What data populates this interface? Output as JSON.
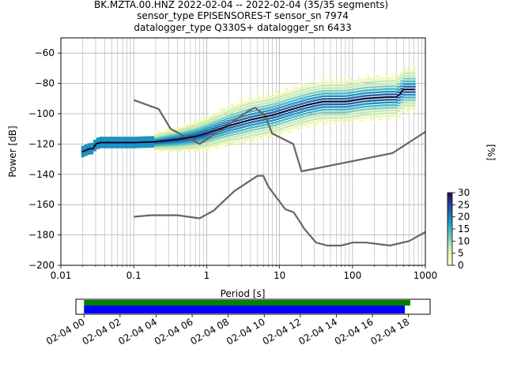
{
  "chart_data": [
    {
      "type": "line",
      "title_lines": [
        "BK.MZTA.00.HNZ   2022-02-04 -- 2022-02-04  (35/35 segments)",
        "sensor_type EPISENSORES-T sensor_sn 7974",
        "datalogger_type Q330S+ datalogger_sn 6433"
      ],
      "xlabel": "Period [s]",
      "ylabel": "Power [dB]",
      "xscale": "log",
      "xlim": [
        0.01,
        1000
      ],
      "ylim": [
        -200,
        -50
      ],
      "x_ticks": [
        {
          "value": 0.01,
          "label": "0.01"
        },
        {
          "value": 0.1,
          "label": "0.1"
        },
        {
          "value": 1,
          "label": "1"
        },
        {
          "value": 10,
          "label": "10"
        },
        {
          "value": 100,
          "label": "100"
        },
        {
          "value": 1000,
          "label": "1000"
        }
      ],
      "y_ticks": [
        {
          "value": -60,
          "label": "−60"
        },
        {
          "value": -80,
          "label": "−80"
        },
        {
          "value": -100,
          "label": "−100"
        },
        {
          "value": -120,
          "label": "−120"
        },
        {
          "value": -140,
          "label": "−140"
        },
        {
          "value": -160,
          "label": "−160"
        },
        {
          "value": -180,
          "label": "−180"
        },
        {
          "value": -200,
          "label": "−200"
        }
      ],
      "grid": true,
      "series": [
        {
          "role": "high noise model",
          "color": "#666666",
          "points": [
            [
              0.1,
              -91
            ],
            [
              0.22,
              -97
            ],
            [
              0.32,
              -110
            ],
            [
              0.8,
              -120
            ],
            [
              3.8,
              -98
            ],
            [
              4.6,
              -96
            ],
            [
              6.3,
              -101
            ],
            [
              7.9,
              -113
            ],
            [
              15.4,
              -120
            ],
            [
              20,
              -138
            ],
            [
              354,
              -126
            ],
            [
              1000,
              -112
            ]
          ]
        },
        {
          "role": "low noise model",
          "color": "#666666",
          "points": [
            [
              0.1,
              -168
            ],
            [
              0.17,
              -167
            ],
            [
              0.4,
              -167
            ],
            [
              0.8,
              -169
            ],
            [
              1.24,
              -164
            ],
            [
              2.4,
              -151
            ],
            [
              4.3,
              -143
            ],
            [
              5,
              -141
            ],
            [
              6,
              -141
            ],
            [
              7,
              -148
            ],
            [
              10,
              -158
            ],
            [
              12,
              -163
            ],
            [
              15.6,
              -165
            ],
            [
              20,
              -173
            ],
            [
              21.9,
              -176
            ],
            [
              31.6,
              -185
            ],
            [
              45,
              -187
            ],
            [
              70,
              -187
            ],
            [
              101,
              -185
            ],
            [
              154,
              -185
            ],
            [
              328,
              -187
            ],
            [
              600,
              -184
            ],
            [
              1000,
              -178
            ]
          ]
        },
        {
          "role": "mode",
          "color": "#000000",
          "points": [
            [
              0.02,
              -125
            ],
            [
              0.025,
              -123
            ],
            [
              0.028,
              -123
            ],
            [
              0.03,
              -120
            ],
            [
              0.035,
              -119
            ],
            [
              0.05,
              -119
            ],
            [
              0.1,
              -119
            ],
            [
              0.2,
              -118.5
            ],
            [
              0.4,
              -117
            ],
            [
              0.7,
              -115
            ],
            [
              1,
              -113
            ],
            [
              2,
              -108
            ],
            [
              4,
              -104
            ],
            [
              8,
              -101
            ],
            [
              15,
              -97
            ],
            [
              25,
              -94
            ],
            [
              40,
              -92
            ],
            [
              80,
              -92
            ],
            [
              150,
              -90
            ],
            [
              300,
              -89
            ],
            [
              400,
              -89
            ],
            [
              450,
              -87
            ],
            [
              500,
              -84
            ],
            [
              600,
              -84
            ],
            [
              700,
              -84
            ]
          ]
        }
      ],
      "colorbar": {
        "label": "[%]",
        "range": [
          0,
          30
        ],
        "ticks": [
          {
            "value": 0,
            "label": "0"
          },
          {
            "value": 5,
            "label": "5"
          },
          {
            "value": 10,
            "label": "10"
          },
          {
            "value": 15,
            "label": "15"
          },
          {
            "value": 20,
            "label": "20"
          },
          {
            "value": 25,
            "label": "25"
          },
          {
            "value": 30,
            "label": "30"
          }
        ],
        "colormap": [
          "#ffffd9",
          "#edf8b1",
          "#c7e9b4",
          "#7fcdbb",
          "#41b6c4",
          "#1d91c0",
          "#225ea8",
          "#253494",
          "#2c0f4a"
        ]
      }
    },
    {
      "type": "bar",
      "role": "data coverage timeline",
      "x_ticks": [
        {
          "hour": 0,
          "label": "02-04 00"
        },
        {
          "hour": 2,
          "label": "02-04 02"
        },
        {
          "hour": 4,
          "label": "02-04 04"
        },
        {
          "hour": 6,
          "label": "02-04 06"
        },
        {
          "hour": 8,
          "label": "02-04 08"
        },
        {
          "hour": 10,
          "label": "02-04 10"
        },
        {
          "hour": 12,
          "label": "02-04 12"
        },
        {
          "hour": 14,
          "label": "02-04 14"
        },
        {
          "hour": 16,
          "label": "02-04 16"
        },
        {
          "hour": 18,
          "label": "02-04 18"
        }
      ],
      "xlim_hours": [
        -0.45,
        19.2
      ],
      "bars": [
        {
          "role": "used segments",
          "start_hour": 0,
          "end_hour": 17.8,
          "color": "#0000ff"
        },
        {
          "role": "available data",
          "start_hour": 0,
          "end_hour": 18.1,
          "color": "#008000"
        }
      ]
    }
  ]
}
